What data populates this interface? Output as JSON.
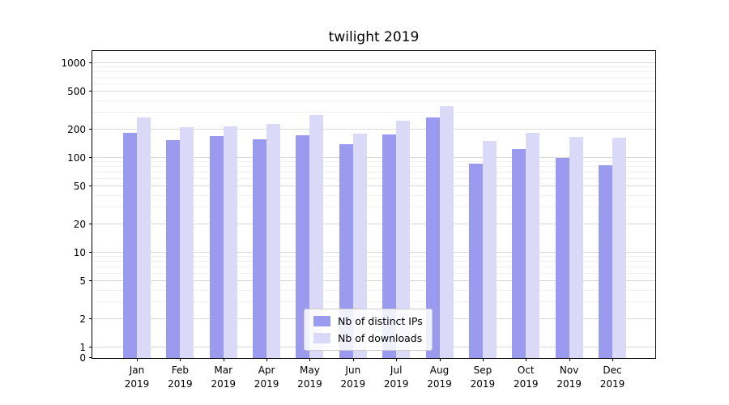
{
  "chart_data": {
    "type": "bar",
    "title": "twilight 2019",
    "year_line": "2019",
    "month_labels": [
      "Jan",
      "Feb",
      "Mar",
      "Apr",
      "May",
      "Jun",
      "Jul",
      "Aug",
      "Sep",
      "Oct",
      "Nov",
      "Dec"
    ],
    "categories": [
      "Jan 2019",
      "Feb 2019",
      "Mar 2019",
      "Apr 2019",
      "May 2019",
      "Jun 2019",
      "Jul 2019",
      "Aug 2019",
      "Sep 2019",
      "Oct 2019",
      "Nov 2019",
      "Dec 2019"
    ],
    "series": [
      {
        "name": "Nb of distinct IPs",
        "color": "#9a9aef",
        "values": [
          185,
          155,
          170,
          158,
          175,
          140,
          178,
          268,
          88,
          124,
          100,
          84
        ]
      },
      {
        "name": "Nb of downloads",
        "color": "#dadaf8",
        "values": [
          265,
          210,
          217,
          228,
          283,
          180,
          248,
          352,
          150,
          184,
          168,
          164
        ]
      }
    ],
    "yscale": "log-with-zero",
    "yticks": [
      0,
      1,
      2,
      5,
      10,
      20,
      50,
      100,
      200,
      500,
      1000
    ],
    "ylim": [
      0,
      1400
    ],
    "grid": true,
    "legend_position": "lower-center-inside",
    "colors": {
      "grid_major": "#d9d9d9",
      "grid_minor": "#f1f1f1",
      "axis": "#000000"
    }
  }
}
